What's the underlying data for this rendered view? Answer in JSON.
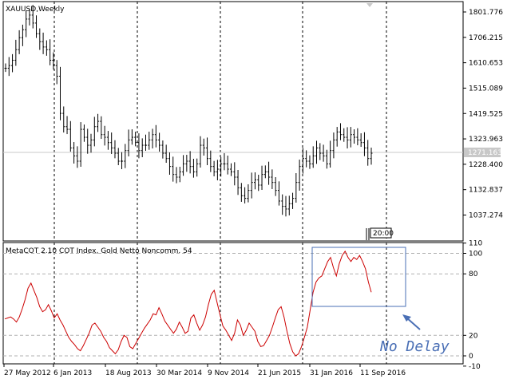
{
  "main_chart": {
    "title": "XAUUSD,Weekly",
    "current_price": "1271.163",
    "price_ticks": [
      "1801.776",
      "1706.215",
      "1610.653",
      "1515.089",
      "1419.525",
      "1323.963",
      "1228.400",
      "1132.837",
      "1037.274"
    ],
    "time_marker": "20:00"
  },
  "indicator": {
    "title": "MetaCOT 2.10 COT Index, Gold Netto Noncomm. 54",
    "ticks": [
      "110",
      "100",
      "80",
      "20",
      "0",
      "-10"
    ]
  },
  "time_axis": [
    "27 May 2012",
    "6 Jan 2013",
    "18 Aug 2013",
    "30 Mar 2014",
    "9 Nov 2014",
    "21 Jun 2015",
    "31 Jan 2016",
    "11 Sep 2016"
  ],
  "annotation": {
    "text": "No Delay"
  },
  "colors": {
    "candle": "#000000",
    "indicator_line": "#cc0000",
    "annotation": "#4a6fb5",
    "grid": "#000000",
    "level_lines": "#b0b0b0"
  },
  "chart_data": [
    {
      "type": "candlestick",
      "title": "XAUUSD,Weekly",
      "ylim": [
        990,
        1830
      ],
      "y_ticks": [
        1801.776,
        1706.215,
        1610.653,
        1515.089,
        1419.525,
        1323.963,
        1228.4,
        1132.837,
        1037.274
      ],
      "x_categories": [
        "27 May 2012",
        "6 Jan 2013",
        "18 Aug 2013",
        "30 Mar 2014",
        "9 Nov 2014",
        "21 Jun 2015",
        "31 Jan 2016",
        "11 Sep 2016"
      ],
      "close_path": [
        1590,
        1600,
        1620,
        1660,
        1705,
        1735,
        1775,
        1790,
        1760,
        1720,
        1690,
        1670,
        1660,
        1620,
        1600,
        1560,
        1420,
        1370,
        1360,
        1290,
        1260,
        1240,
        1360,
        1330,
        1300,
        1320,
        1370,
        1390,
        1340,
        1330,
        1310,
        1290,
        1270,
        1240,
        1240,
        1280,
        1320,
        1330,
        1310,
        1280,
        1300,
        1300,
        1320,
        1340,
        1320,
        1300,
        1270,
        1250,
        1220,
        1190,
        1180,
        1200,
        1230,
        1240,
        1220,
        1200,
        1230,
        1300,
        1290,
        1250,
        1220,
        1200,
        1210,
        1230,
        1230,
        1210,
        1200,
        1180,
        1140,
        1110,
        1100,
        1130,
        1160,
        1170,
        1150,
        1190,
        1200,
        1180,
        1160,
        1130,
        1090,
        1070,
        1060,
        1080,
        1100,
        1160,
        1220,
        1250,
        1240,
        1230,
        1260,
        1290,
        1270,
        1260,
        1230,
        1280,
        1320,
        1350,
        1340,
        1330,
        1320,
        1340,
        1330,
        1320,
        1310,
        1290,
        1250,
        1270
      ]
    },
    {
      "type": "line",
      "title": "MetaCOT 2.10 COT Index, Gold Netto Noncomm. 54",
      "ylim": [
        -12,
        112
      ],
      "y_ticks": [
        110,
        100,
        80,
        20,
        0,
        -10
      ],
      "levels": [
        100,
        80,
        20,
        0
      ],
      "values": [
        36,
        37,
        38,
        36,
        33,
        38,
        46,
        55,
        66,
        71,
        64,
        57,
        48,
        43,
        45,
        50,
        44,
        37,
        41,
        35,
        30,
        24,
        18,
        14,
        11,
        7,
        5,
        10,
        16,
        22,
        30,
        32,
        28,
        24,
        18,
        14,
        8,
        5,
        2,
        6,
        14,
        20,
        18,
        9,
        7,
        12,
        17,
        22,
        27,
        31,
        35,
        41,
        40,
        47,
        41,
        34,
        30,
        26,
        22,
        26,
        33,
        28,
        22,
        24,
        37,
        40,
        32,
        25,
        30,
        38,
        50,
        60,
        64,
        52,
        40,
        29,
        25,
        20,
        15,
        22,
        35,
        30,
        20,
        25,
        32,
        28,
        24,
        14,
        9,
        10,
        15,
        20,
        28,
        37,
        45,
        48,
        38,
        24,
        12,
        4,
        0,
        2,
        9,
        18,
        28,
        45,
        62,
        72,
        76,
        78,
        85,
        92,
        96,
        86,
        78,
        90,
        98,
        102,
        96,
        92,
        96,
        94,
        98,
        92,
        85,
        72,
        62
      ]
    }
  ]
}
